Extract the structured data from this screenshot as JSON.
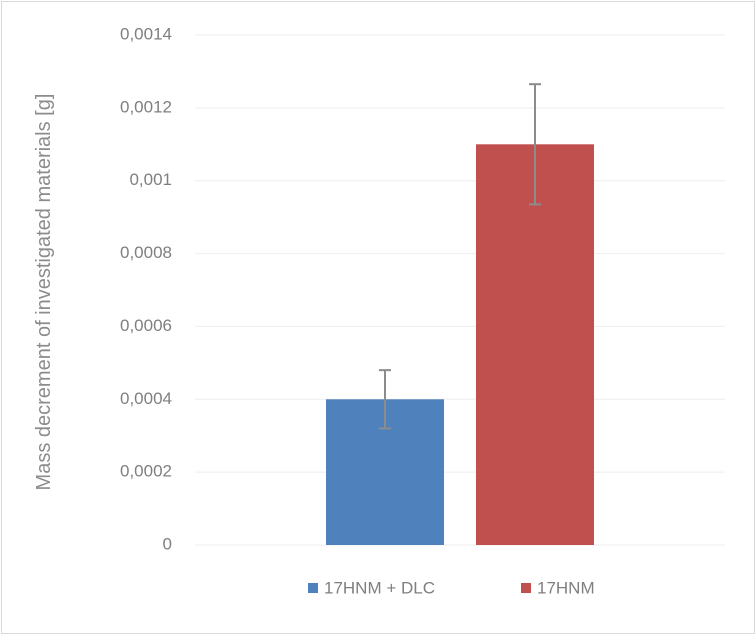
{
  "chart_data": {
    "type": "bar",
    "y_label": "Mass decrement of investigated materials [g]",
    "categories": [
      null
    ],
    "series": [
      {
        "name": "17HNM + DLC",
        "color": "#4f81bd",
        "values": [
          0.0004
        ],
        "errors": [
          8e-05
        ]
      },
      {
        "name": "17HNM",
        "color": "#c0504d",
        "values": [
          0.0011
        ],
        "errors": [
          0.000165
        ]
      }
    ],
    "ylim": [
      0,
      0.0014
    ],
    "yticks": [
      0,
      {
        "value": 0.0002,
        "label": "0,0002"
      },
      {
        "value": 0.0004,
        "label": "0,0004"
      },
      {
        "value": 0.0006,
        "label": "0,0006"
      },
      {
        "value": 0.0008,
        "label": "0,0008"
      },
      {
        "value": 0.001,
        "label": "0,001"
      },
      {
        "value": 0.0012,
        "label": "0,0012"
      },
      {
        "value": 0.0014,
        "label": "0,0014"
      }
    ],
    "grid": true,
    "legend": "bottom"
  }
}
